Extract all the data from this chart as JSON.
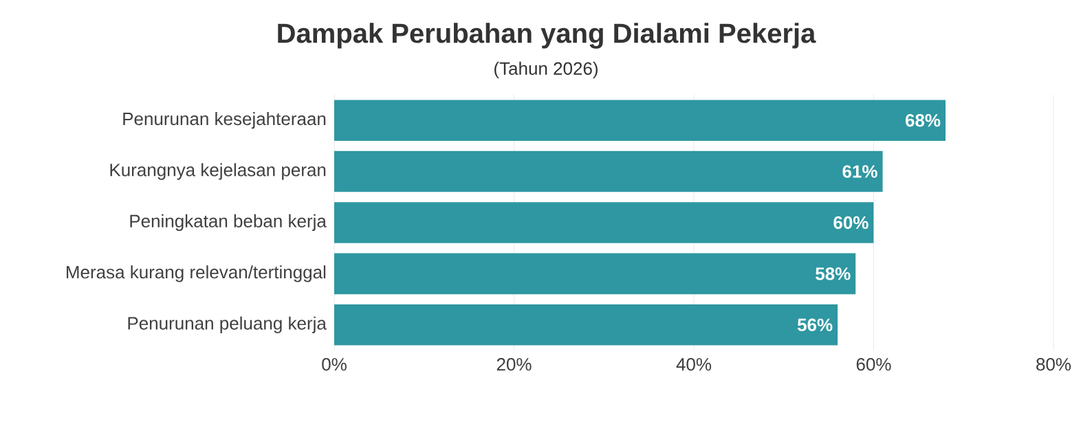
{
  "chart_data": {
    "type": "bar",
    "orientation": "horizontal",
    "title": "Dampak Perubahan yang Dialami Pekerja",
    "subtitle": "(Tahun 2026)",
    "categories": [
      "Penurunan kesejahteraan",
      "Kurangnya kejelasan peran",
      "Peningkatan beban kerja",
      "Merasa kurang relevan/tertinggal",
      "Penurunan peluang kerja"
    ],
    "values": [
      68,
      61,
      60,
      58,
      56
    ],
    "value_labels": [
      "68%",
      "61%",
      "60%",
      "58%",
      "56%"
    ],
    "color": "#2e97a1",
    "xlim": [
      0,
      80
    ],
    "xticks": [
      {
        "value": 0,
        "label": "0%"
      },
      {
        "value": 20,
        "label": "20%"
      },
      {
        "value": 40,
        "label": "40%"
      },
      {
        "value": 60,
        "label": "60%"
      },
      {
        "value": 80,
        "label": "80%"
      }
    ],
    "grid": "x"
  }
}
